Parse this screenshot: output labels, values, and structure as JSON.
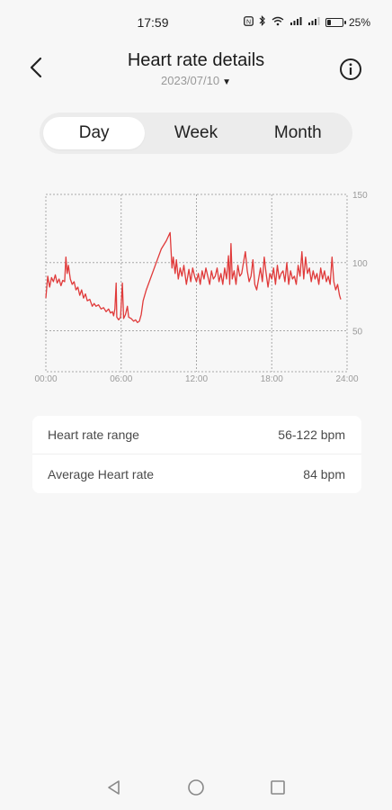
{
  "status_bar": {
    "time": "17:59",
    "battery_text": "25%",
    "battery_level": 0.25
  },
  "header": {
    "title": "Heart rate details",
    "date": "2023/07/10",
    "back_icon": "chevron-left-icon",
    "info_icon": "info-circle-icon"
  },
  "tabs": [
    {
      "label": "Day",
      "active": true
    },
    {
      "label": "Week",
      "active": false
    },
    {
      "label": "Month",
      "active": false
    }
  ],
  "chart_data": {
    "type": "line",
    "title": "",
    "xlabel": "",
    "ylabel": "",
    "x_ticks": [
      "00:00",
      "06:00",
      "12:00",
      "18:00",
      "24:00"
    ],
    "y_ticks": [
      "150",
      "100",
      "50"
    ],
    "xlim": [
      0,
      24
    ],
    "ylim": [
      20,
      150
    ],
    "grid": "dotted",
    "color": "#e03a3a",
    "series": [
      {
        "points": [
          [
            0.0,
            74
          ],
          [
            0.15,
            90
          ],
          [
            0.3,
            82
          ],
          [
            0.45,
            89
          ],
          [
            0.6,
            86
          ],
          [
            0.75,
            91
          ],
          [
            0.9,
            85
          ],
          [
            1.05,
            88
          ],
          [
            1.2,
            83
          ],
          [
            1.35,
            87
          ],
          [
            1.5,
            86
          ],
          [
            1.6,
            104
          ],
          [
            1.7,
            92
          ],
          [
            1.8,
            98
          ],
          [
            1.95,
            88
          ],
          [
            2.1,
            84
          ],
          [
            2.25,
            86
          ],
          [
            2.4,
            80
          ],
          [
            2.55,
            82
          ],
          [
            2.7,
            76
          ],
          [
            2.85,
            80
          ],
          [
            3.0,
            74
          ],
          [
            3.15,
            77
          ],
          [
            3.3,
            72
          ],
          [
            3.5,
            73
          ],
          [
            3.7,
            68
          ],
          [
            3.85,
            70
          ],
          [
            4.0,
            68
          ],
          [
            4.2,
            69
          ],
          [
            4.4,
            66
          ],
          [
            4.6,
            67
          ],
          [
            4.8,
            64
          ],
          [
            5.0,
            66
          ],
          [
            5.15,
            63
          ],
          [
            5.3,
            64
          ],
          [
            5.4,
            61
          ],
          [
            5.5,
            66
          ],
          [
            5.6,
            85
          ],
          [
            5.65,
            60
          ],
          [
            5.8,
            58
          ],
          [
            5.95,
            60
          ],
          [
            6.1,
            85
          ],
          [
            6.2,
            59
          ],
          [
            6.35,
            62
          ],
          [
            6.5,
            68
          ],
          [
            6.6,
            60
          ],
          [
            6.8,
            59
          ],
          [
            7.0,
            57
          ],
          [
            7.15,
            58
          ],
          [
            7.3,
            56
          ],
          [
            7.45,
            57
          ],
          [
            7.6,
            62
          ],
          [
            7.75,
            72
          ],
          [
            8.0,
            80
          ],
          [
            8.4,
            90
          ],
          [
            8.8,
            100
          ],
          [
            9.2,
            110
          ],
          [
            9.6,
            116
          ],
          [
            9.9,
            122
          ],
          [
            10.05,
            96
          ],
          [
            10.15,
            104
          ],
          [
            10.3,
            92
          ],
          [
            10.4,
            102
          ],
          [
            10.55,
            88
          ],
          [
            10.7,
            96
          ],
          [
            10.85,
            90
          ],
          [
            11.0,
            98
          ],
          [
            11.2,
            84
          ],
          [
            11.4,
            95
          ],
          [
            11.55,
            86
          ],
          [
            11.7,
            96
          ],
          [
            11.85,
            90
          ],
          [
            12.0,
            86
          ],
          [
            12.15,
            92
          ],
          [
            12.3,
            84
          ],
          [
            12.45,
            94
          ],
          [
            12.6,
            88
          ],
          [
            12.75,
            96
          ],
          [
            12.9,
            90
          ],
          [
            13.05,
            84
          ],
          [
            13.2,
            94
          ],
          [
            13.35,
            88
          ],
          [
            13.5,
            90
          ],
          [
            13.65,
            96
          ],
          [
            13.8,
            86
          ],
          [
            13.95,
            92
          ],
          [
            14.1,
            84
          ],
          [
            14.25,
            96
          ],
          [
            14.4,
            88
          ],
          [
            14.55,
            105
          ],
          [
            14.65,
            84
          ],
          [
            14.75,
            114
          ],
          [
            14.85,
            88
          ],
          [
            15.0,
            94
          ],
          [
            15.15,
            84
          ],
          [
            15.3,
            98
          ],
          [
            15.45,
            90
          ],
          [
            15.6,
            92
          ],
          [
            15.75,
            100
          ],
          [
            15.9,
            108
          ],
          [
            16.05,
            94
          ],
          [
            16.2,
            86
          ],
          [
            16.35,
            90
          ],
          [
            16.5,
            102
          ],
          [
            16.65,
            84
          ],
          [
            16.8,
            80
          ],
          [
            16.95,
            88
          ],
          [
            17.1,
            96
          ],
          [
            17.25,
            86
          ],
          [
            17.4,
            104
          ],
          [
            17.55,
            92
          ],
          [
            17.7,
            82
          ],
          [
            17.85,
            92
          ],
          [
            18.0,
            88
          ],
          [
            18.15,
            96
          ],
          [
            18.3,
            84
          ],
          [
            18.45,
            98
          ],
          [
            18.6,
            88
          ],
          [
            18.75,
            92
          ],
          [
            18.9,
            94
          ],
          [
            19.05,
            86
          ],
          [
            19.2,
            100
          ],
          [
            19.35,
            84
          ],
          [
            19.5,
            94
          ],
          [
            19.65,
            88
          ],
          [
            19.8,
            90
          ],
          [
            19.95,
            84
          ],
          [
            20.1,
            98
          ],
          [
            20.25,
            90
          ],
          [
            20.4,
            108
          ],
          [
            20.55,
            88
          ],
          [
            20.7,
            104
          ],
          [
            20.85,
            92
          ],
          [
            21.0,
            96
          ],
          [
            21.15,
            86
          ],
          [
            21.3,
            94
          ],
          [
            21.45,
            88
          ],
          [
            21.6,
            92
          ],
          [
            21.75,
            84
          ],
          [
            21.9,
            96
          ],
          [
            22.05,
            88
          ],
          [
            22.2,
            94
          ],
          [
            22.35,
            86
          ],
          [
            22.5,
            90
          ],
          [
            22.65,
            84
          ],
          [
            22.8,
            104
          ],
          [
            22.95,
            86
          ],
          [
            23.1,
            80
          ],
          [
            23.25,
            84
          ],
          [
            23.4,
            76
          ],
          [
            23.5,
            73
          ]
        ]
      }
    ]
  },
  "stats": [
    {
      "label": "Heart rate range",
      "value": "56-122 bpm"
    },
    {
      "label": "Average Heart rate",
      "value": "84 bpm"
    }
  ],
  "nav": {
    "back_icon": "triangle-back-icon",
    "home_icon": "circle-home-icon",
    "recents_icon": "square-recents-icon"
  }
}
